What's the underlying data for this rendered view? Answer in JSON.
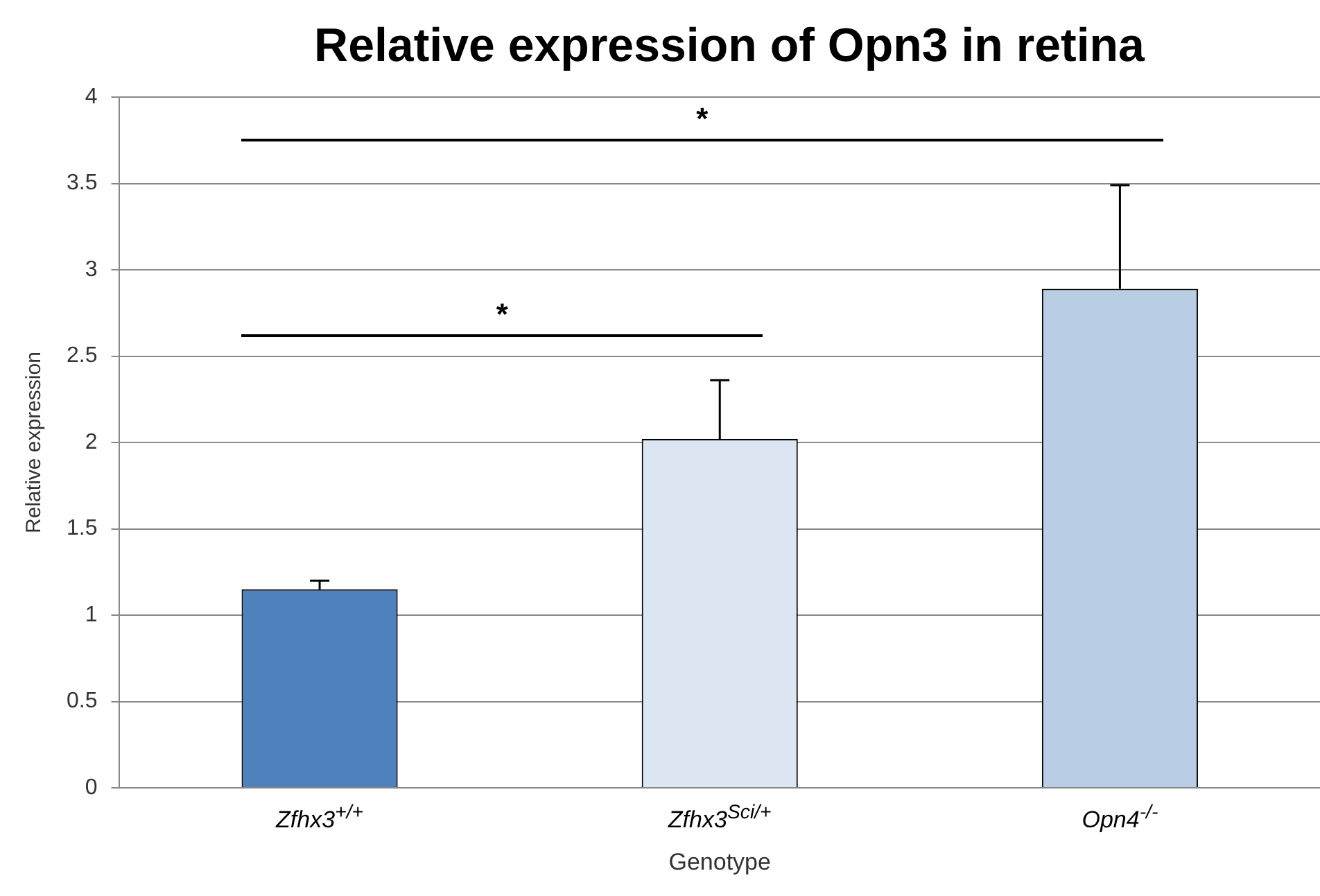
{
  "chart_data": {
    "type": "bar",
    "title": "Relative expression of Opn3 in retina",
    "xlabel": "Genotype",
    "ylabel": "Relative expression",
    "categories": [
      "Zfhx3$^{+/+}$",
      "Zfhx3$^{Sci/+}$",
      "Opn4$^{-/-}$"
    ],
    "values": [
      1.15,
      2.02,
      2.89
    ],
    "colors": [
      "#4f81bd",
      "#dce6f2",
      "#b9cde5"
    ],
    "errors": [
      [
        1.15,
        1.2
      ],
      [
        2.02,
        2.36
      ],
      [
        2.89,
        3.49
      ]
    ],
    "ylim": [
      0,
      4
    ],
    "yticks": [
      0,
      0.5,
      1,
      1.5,
      2,
      2.5,
      3,
      3.5,
      4
    ],
    "grid": "y",
    "annotations": [
      "*",
      "*"
    ]
  }
}
